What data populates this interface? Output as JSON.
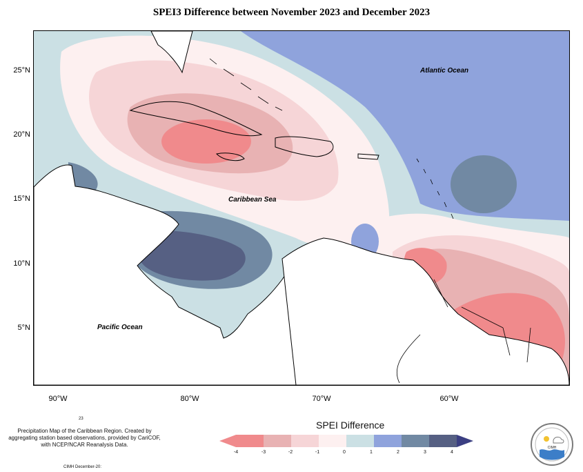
{
  "title": "SPEI3 Difference between November 2023 and December 2023",
  "map": {
    "lat_ticks": [
      "25°N",
      "20°N",
      "15°N",
      "10°N",
      "5°N"
    ],
    "lon_ticks": [
      "90°W",
      "80°W",
      "70°W",
      "60°W"
    ],
    "labels": {
      "atlantic": "Atlantic Ocean",
      "caribbean": "Caribbean Sea",
      "pacific": "Pacific Ocean"
    }
  },
  "legend": {
    "title": "SPEI Difference",
    "tick_labels": [
      "-4",
      "-3",
      "-2",
      "-1",
      "0",
      "1",
      "2",
      "3",
      "4"
    ],
    "colors": [
      "#f08a8c",
      "#e8b2b3",
      "#f6d5d7",
      "#fdf0f0",
      "#cbe0e4",
      "#8fa3dc",
      "#7189a3",
      "#566083",
      "#3b3f82"
    ]
  },
  "credit": {
    "number": "23",
    "text": "Precipitation Map of the Caribbean Region. Created by aggregating station based observations, provided by CariCOF, with NCEP/NCAR Reanalysis Data.",
    "footer": "CIMH December-20:"
  }
}
